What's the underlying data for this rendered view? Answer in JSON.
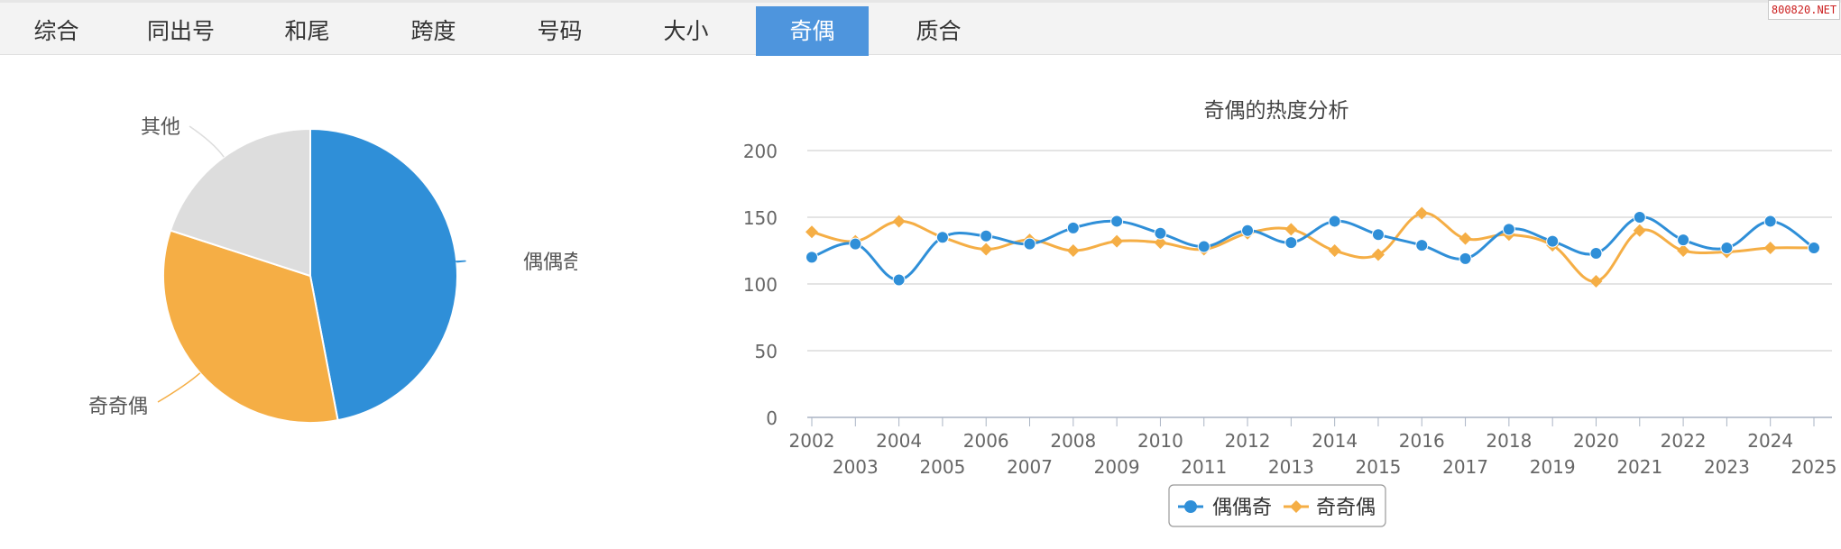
{
  "tabs": [
    {
      "label": "综合",
      "active": false
    },
    {
      "label": "同出号",
      "active": false
    },
    {
      "label": "和尾",
      "active": false
    },
    {
      "label": "跨度",
      "active": false
    },
    {
      "label": "号码",
      "active": false
    },
    {
      "label": "大小",
      "active": false
    },
    {
      "label": "奇偶",
      "active": true
    },
    {
      "label": "质合",
      "active": false
    }
  ],
  "watermark": "800820.NET",
  "colors": {
    "blue": "#2f8fd8",
    "orange": "#f5ae45",
    "gray": "#dddddd",
    "tab_active": "#4e95dd"
  },
  "chart_data": [
    {
      "type": "pie",
      "title": "",
      "slices": [
        {
          "label": "偶偶奇",
          "value": 47,
          "color": "#2f8fd8"
        },
        {
          "label": "奇奇偶",
          "value": 33,
          "color": "#f5ae45"
        },
        {
          "label": "其他",
          "value": 20,
          "color": "#dddddd"
        }
      ]
    },
    {
      "type": "line",
      "title": "奇偶的热度分析",
      "xlabel": "",
      "ylabel": "",
      "x": [
        "2002",
        "2003",
        "2004",
        "2005",
        "2006",
        "2007",
        "2008",
        "2009",
        "2010",
        "2011",
        "2012",
        "2013",
        "2014",
        "2015",
        "2016",
        "2017",
        "2018",
        "2019",
        "2020",
        "2021",
        "2022",
        "2023",
        "2024",
        "2025"
      ],
      "ylim": [
        0,
        200
      ],
      "yticks": [
        "0",
        "50",
        "100",
        "150",
        "200"
      ],
      "grid": true,
      "legend": "bottom-center",
      "series": [
        {
          "name": "偶偶奇",
          "color": "#2f8fd8",
          "marker": "circle",
          "values": [
            120,
            130,
            103,
            135,
            136,
            130,
            142,
            147,
            138,
            128,
            140,
            131,
            147,
            137,
            129,
            119,
            141,
            132,
            123,
            150,
            133,
            127,
            147,
            127
          ]
        },
        {
          "name": "奇奇偶",
          "color": "#f5ae45",
          "marker": "diamond",
          "values": [
            139,
            132,
            147,
            135,
            126,
            133,
            125,
            132,
            131,
            126,
            138,
            141,
            125,
            122,
            153,
            134,
            137,
            129,
            102,
            140,
            125,
            124,
            127,
            127
          ]
        }
      ]
    }
  ]
}
